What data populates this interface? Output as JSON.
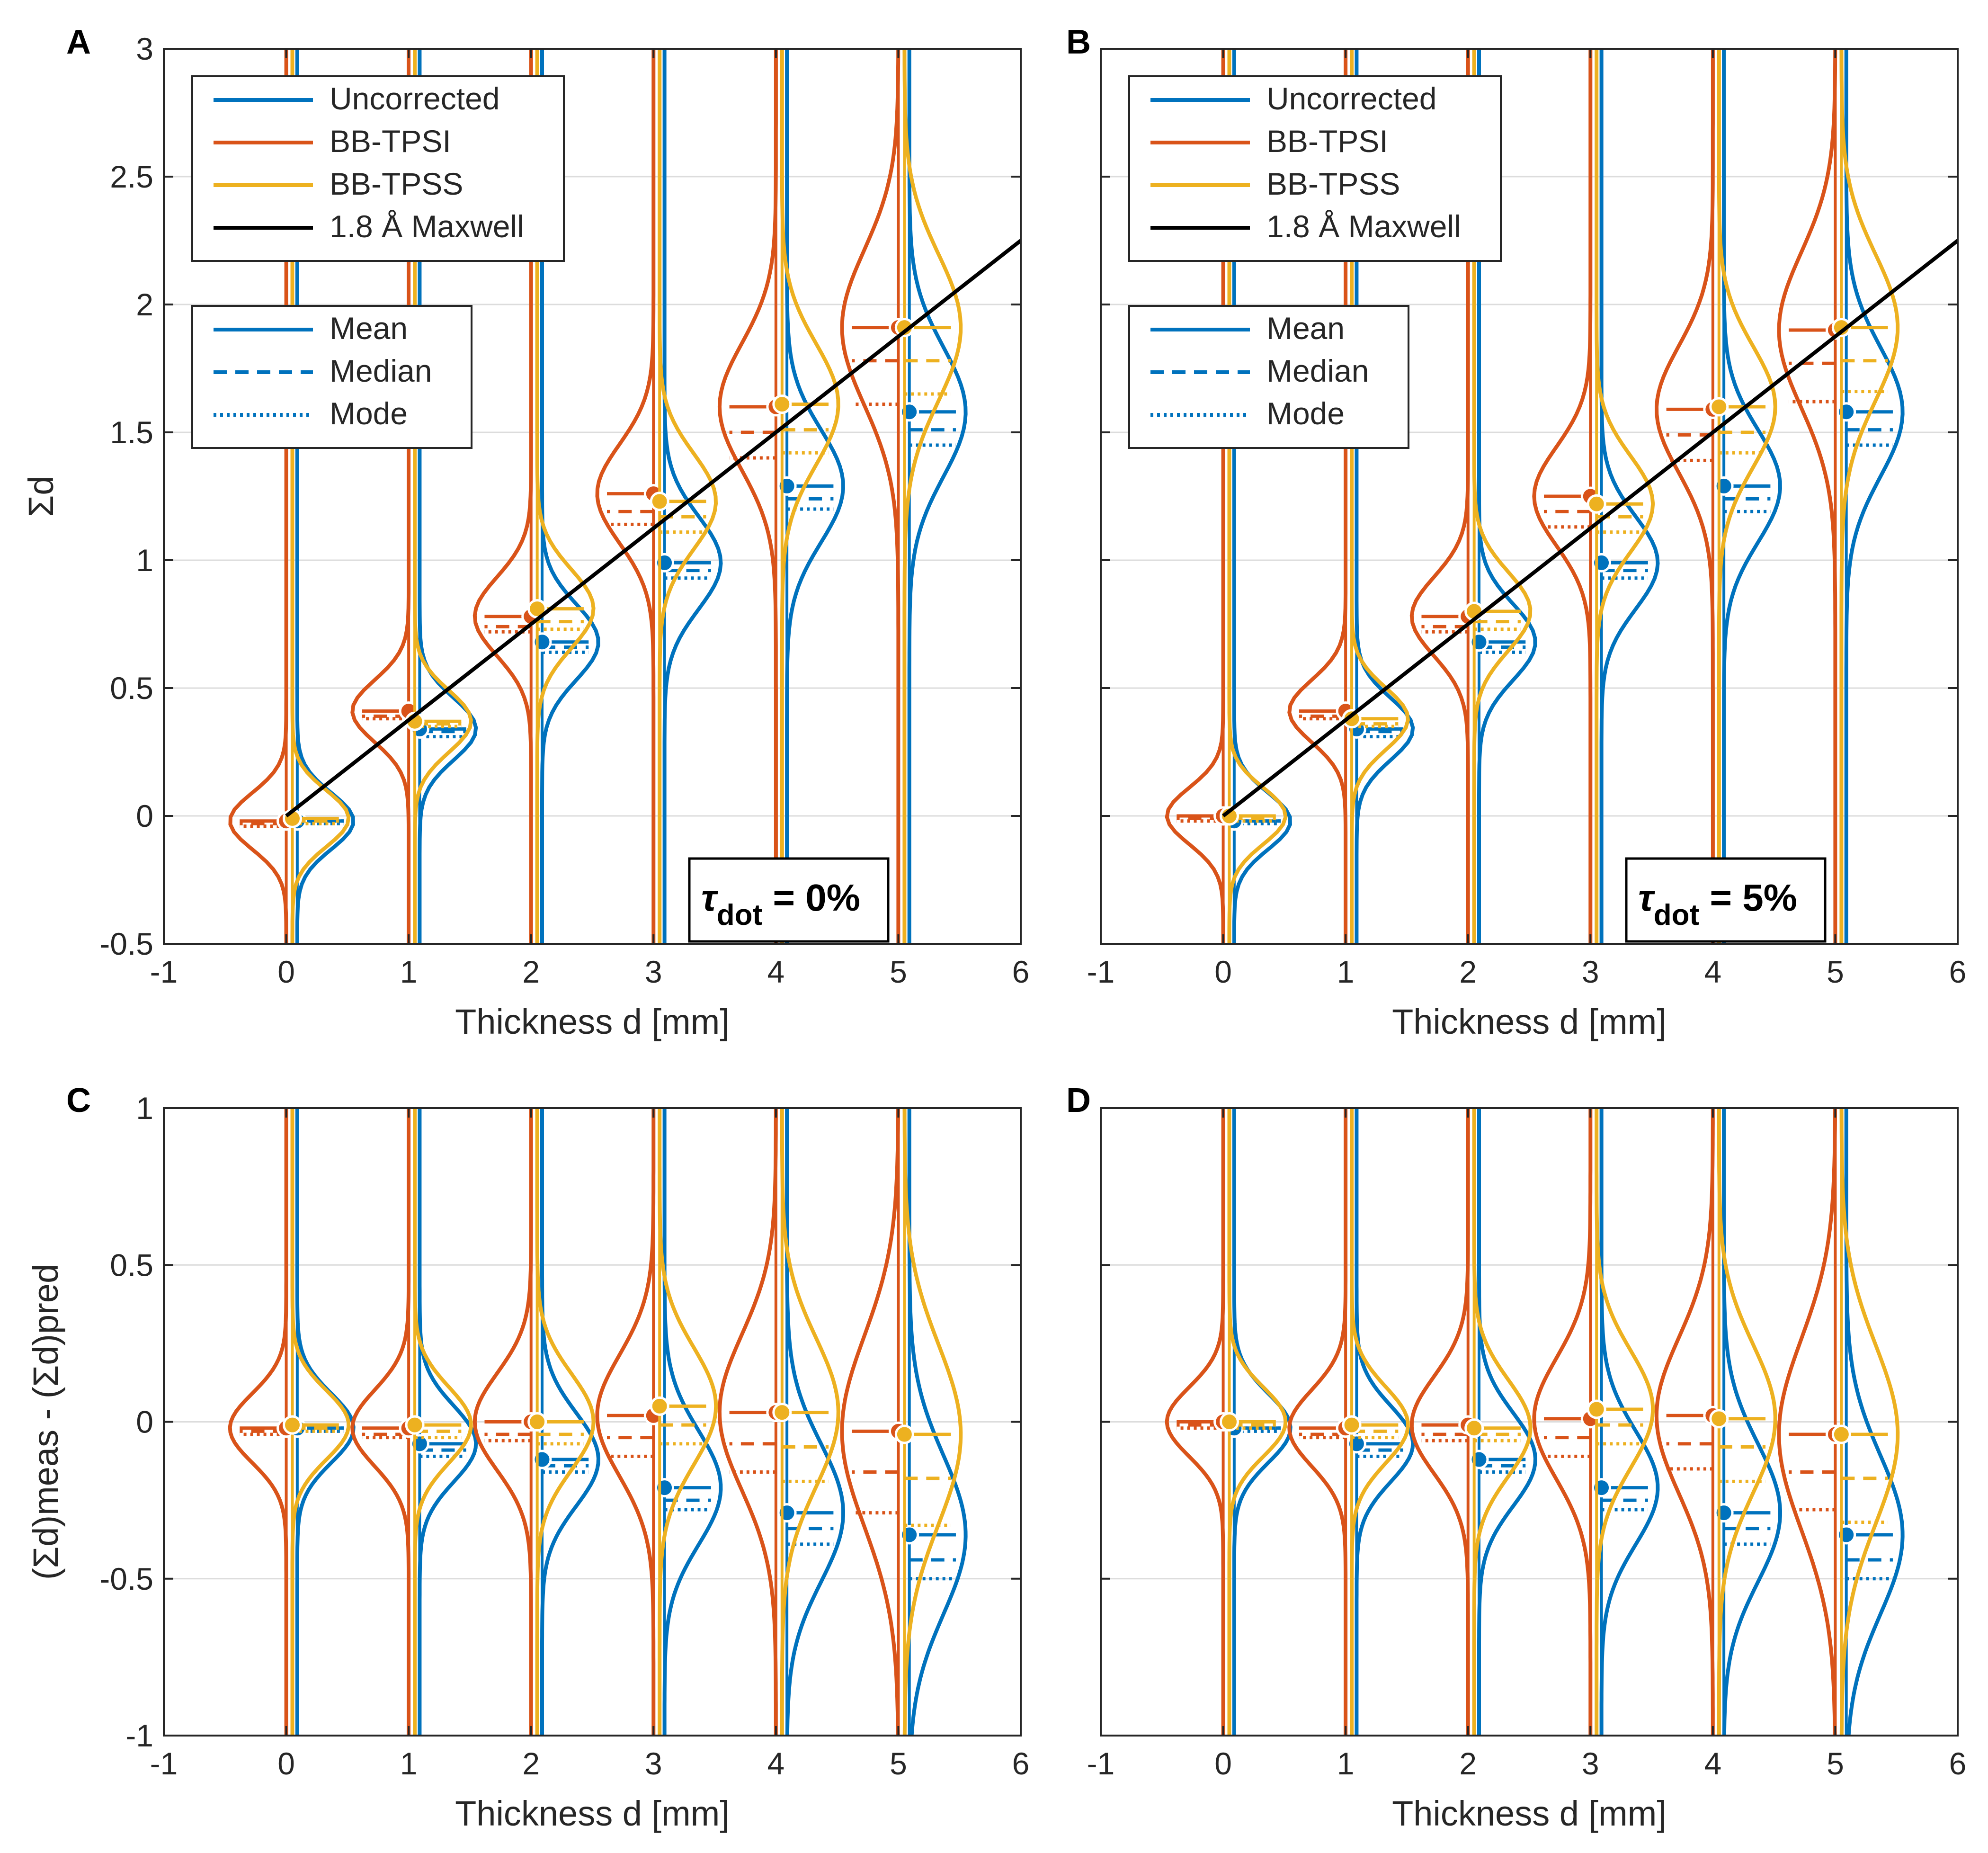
{
  "chart_data": [
    {
      "panel": "A",
      "type": "violin",
      "xlabel": "Thickness d [mm]",
      "ylabel": "Σd",
      "xlim": [
        -1,
        6
      ],
      "ylim": [
        -0.5,
        3
      ],
      "xticks": [
        "-1",
        "0",
        "1",
        "2",
        "3",
        "4",
        "5",
        "6"
      ],
      "yticks": [
        "-0.5",
        "0",
        "0.5",
        "1",
        "1.5",
        "2",
        "2.5",
        "3"
      ],
      "annotation": {
        "symbol": "τ",
        "sub": "dot",
        "text": " = 0%"
      },
      "reference_line": {
        "name": "1.8 Å Maxwell",
        "x": [
          0,
          6
        ],
        "y": [
          0,
          2.25
        ]
      },
      "series": [
        {
          "name": "Uncorrected",
          "color": "#0072BD",
          "x": [
            0,
            1,
            2,
            3,
            4,
            5
          ],
          "mean": [
            -0.02,
            0.34,
            0.68,
            0.99,
            1.29,
            1.58
          ],
          "median": [
            -0.02,
            0.33,
            0.66,
            0.96,
            1.24,
            1.51
          ],
          "mode": [
            -0.03,
            0.31,
            0.64,
            0.93,
            1.2,
            1.45
          ],
          "spread": [
            0.2,
            0.22,
            0.27,
            0.33,
            0.4,
            0.46
          ]
        },
        {
          "name": "BB-TPSI",
          "color": "#D95319",
          "x": [
            0,
            1,
            2,
            3,
            4,
            5
          ],
          "mean": [
            -0.02,
            0.41,
            0.78,
            1.26,
            1.6,
            1.91
          ],
          "median": [
            -0.03,
            0.39,
            0.74,
            1.19,
            1.5,
            1.78
          ],
          "mode": [
            -0.04,
            0.38,
            0.72,
            1.14,
            1.4,
            1.61
          ],
          "spread": [
            0.2,
            0.22,
            0.28,
            0.35,
            0.45,
            0.55
          ]
        },
        {
          "name": "BB-TPSS",
          "color": "#EDB120",
          "x": [
            0,
            1,
            2,
            3,
            4,
            5
          ],
          "mean": [
            -0.01,
            0.37,
            0.81,
            1.23,
            1.61,
            1.91
          ],
          "median": [
            -0.02,
            0.36,
            0.76,
            1.17,
            1.51,
            1.78
          ],
          "mode": [
            -0.03,
            0.35,
            0.73,
            1.11,
            1.42,
            1.65
          ],
          "spread": [
            0.2,
            0.22,
            0.28,
            0.34,
            0.43,
            0.52
          ]
        }
      ]
    },
    {
      "panel": "B",
      "type": "violin",
      "xlabel": "Thickness d [mm]",
      "ylabel": "",
      "xlim": [
        -1,
        6
      ],
      "ylim": [
        -0.5,
        3
      ],
      "xticks": [
        "-1",
        "0",
        "1",
        "2",
        "3",
        "4",
        "5",
        "6"
      ],
      "yticks": [],
      "annotation": {
        "symbol": "τ",
        "sub": "dot",
        "text": " = 5%"
      },
      "reference_line": {
        "name": "1.8 Å Maxwell",
        "x": [
          0,
          6
        ],
        "y": [
          0,
          2.25
        ]
      },
      "series": [
        {
          "name": "Uncorrected",
          "color": "#0072BD",
          "x": [
            0,
            1,
            2,
            3,
            4,
            5
          ],
          "mean": [
            -0.02,
            0.34,
            0.68,
            0.99,
            1.29,
            1.58
          ],
          "median": [
            -0.02,
            0.33,
            0.66,
            0.96,
            1.24,
            1.51
          ],
          "mode": [
            -0.03,
            0.31,
            0.64,
            0.93,
            1.19,
            1.45
          ],
          "spread": [
            0.2,
            0.22,
            0.27,
            0.33,
            0.4,
            0.46
          ]
        },
        {
          "name": "BB-TPSI",
          "color": "#D95319",
          "x": [
            0,
            1,
            2,
            3,
            4,
            5
          ],
          "mean": [
            0.0,
            0.41,
            0.78,
            1.25,
            1.59,
            1.9
          ],
          "median": [
            -0.01,
            0.39,
            0.74,
            1.19,
            1.49,
            1.77
          ],
          "mode": [
            -0.02,
            0.38,
            0.72,
            1.13,
            1.39,
            1.62
          ],
          "spread": [
            0.2,
            0.22,
            0.28,
            0.35,
            0.45,
            0.55
          ]
        },
        {
          "name": "BB-TPSS",
          "color": "#EDB120",
          "x": [
            0,
            1,
            2,
            3,
            4,
            5
          ],
          "mean": [
            0.0,
            0.38,
            0.8,
            1.22,
            1.6,
            1.91
          ],
          "median": [
            -0.01,
            0.36,
            0.76,
            1.17,
            1.5,
            1.78
          ],
          "mode": [
            -0.02,
            0.35,
            0.73,
            1.11,
            1.42,
            1.66
          ],
          "spread": [
            0.2,
            0.22,
            0.28,
            0.34,
            0.43,
            0.52
          ]
        }
      ]
    },
    {
      "panel": "C",
      "type": "violin",
      "xlabel": "Thickness d [mm]",
      "ylabel": "(Σd)meas - (Σd)pred",
      "xlim": [
        -1,
        6
      ],
      "ylim": [
        -1,
        1
      ],
      "xticks": [
        "-1",
        "0",
        "1",
        "2",
        "3",
        "4",
        "5",
        "6"
      ],
      "yticks": [
        "-1",
        "-0.5",
        "0",
        "0.5",
        "1"
      ],
      "series": [
        {
          "name": "Uncorrected",
          "color": "#0072BD",
          "x": [
            0,
            1,
            2,
            3,
            4,
            5
          ],
          "mean": [
            -0.02,
            -0.07,
            -0.12,
            -0.21,
            -0.29,
            -0.36
          ],
          "median": [
            -0.02,
            -0.09,
            -0.14,
            -0.25,
            -0.34,
            -0.44
          ],
          "mode": [
            -0.03,
            -0.11,
            -0.16,
            -0.28,
            -0.39,
            -0.5
          ],
          "spread": [
            0.2,
            0.22,
            0.27,
            0.33,
            0.4,
            0.46
          ]
        },
        {
          "name": "BB-TPSI",
          "color": "#D95319",
          "x": [
            0,
            1,
            2,
            3,
            4,
            5
          ],
          "mean": [
            -0.02,
            -0.02,
            0.0,
            0.02,
            0.03,
            -0.03
          ],
          "median": [
            -0.03,
            -0.04,
            -0.04,
            -0.05,
            -0.07,
            -0.16
          ],
          "mode": [
            -0.04,
            -0.05,
            -0.06,
            -0.11,
            -0.16,
            -0.29
          ],
          "spread": [
            0.2,
            0.22,
            0.28,
            0.35,
            0.45,
            0.55
          ]
        },
        {
          "name": "BB-TPSS",
          "color": "#EDB120",
          "x": [
            0,
            1,
            2,
            3,
            4,
            5
          ],
          "mean": [
            -0.01,
            -0.01,
            0.0,
            0.05,
            0.03,
            -0.04
          ],
          "median": [
            -0.02,
            -0.03,
            -0.04,
            -0.01,
            -0.08,
            -0.18
          ],
          "mode": [
            -0.03,
            -0.05,
            -0.07,
            -0.07,
            -0.19,
            -0.33
          ],
          "spread": [
            0.2,
            0.22,
            0.28,
            0.34,
            0.43,
            0.52
          ]
        }
      ]
    },
    {
      "panel": "D",
      "type": "violin",
      "xlabel": "Thickness d [mm]",
      "ylabel": "",
      "xlim": [
        -1,
        6
      ],
      "ylim": [
        -1,
        1
      ],
      "xticks": [
        "-1",
        "0",
        "1",
        "2",
        "3",
        "4",
        "5",
        "6"
      ],
      "yticks": [],
      "series": [
        {
          "name": "Uncorrected",
          "color": "#0072BD",
          "x": [
            0,
            1,
            2,
            3,
            4,
            5
          ],
          "mean": [
            -0.02,
            -0.07,
            -0.12,
            -0.21,
            -0.29,
            -0.36
          ],
          "median": [
            -0.02,
            -0.09,
            -0.14,
            -0.25,
            -0.34,
            -0.44
          ],
          "mode": [
            -0.03,
            -0.11,
            -0.16,
            -0.28,
            -0.39,
            -0.5
          ],
          "spread": [
            0.2,
            0.22,
            0.27,
            0.33,
            0.4,
            0.46
          ]
        },
        {
          "name": "BB-TPSI",
          "color": "#D95319",
          "x": [
            0,
            1,
            2,
            3,
            4,
            5
          ],
          "mean": [
            0.0,
            -0.02,
            -0.01,
            0.01,
            0.02,
            -0.04
          ],
          "median": [
            -0.01,
            -0.04,
            -0.04,
            -0.05,
            -0.07,
            -0.16
          ],
          "mode": [
            -0.02,
            -0.05,
            -0.06,
            -0.11,
            -0.15,
            -0.28
          ],
          "spread": [
            0.2,
            0.22,
            0.28,
            0.35,
            0.45,
            0.55
          ]
        },
        {
          "name": "BB-TPSS",
          "color": "#EDB120",
          "x": [
            0,
            1,
            2,
            3,
            4,
            5
          ],
          "mean": [
            0.0,
            -0.01,
            -0.02,
            0.04,
            0.01,
            -0.04
          ],
          "median": [
            -0.01,
            -0.03,
            -0.04,
            -0.01,
            -0.08,
            -0.18
          ],
          "mode": [
            -0.02,
            -0.05,
            -0.06,
            -0.07,
            -0.19,
            -0.32
          ],
          "spread": [
            0.2,
            0.22,
            0.28,
            0.34,
            0.43,
            0.52
          ]
        }
      ]
    }
  ],
  "legend_series": [
    "Uncorrected",
    "BB-TPSI",
    "BB-TPSS",
    "1.8 Å Maxwell"
  ],
  "legend_stats": [
    "Mean",
    "Median",
    "Mode"
  ],
  "colors": {
    "uncorrected": "#0072BD",
    "tpsi": "#D95319",
    "tpss": "#EDB120",
    "maxwell": "#000000"
  }
}
